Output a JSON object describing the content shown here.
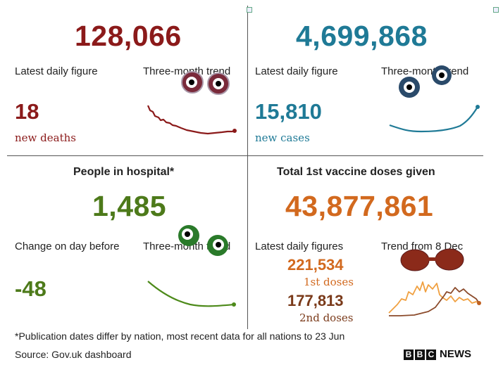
{
  "deaths": {
    "total": "128,066",
    "latest_label": "Latest daily figure",
    "trend_label": "Three-month trend",
    "daily": "18",
    "daily_sub": "new deaths",
    "color": "#8b1a1a"
  },
  "cases": {
    "total": "4,699,868",
    "latest_label": "Latest daily figure",
    "trend_label": "Three-month trend",
    "daily": "15,810",
    "daily_sub": "new cases",
    "color": "#1f7a96"
  },
  "hospital": {
    "heading": "People in hospital*",
    "total": "1,485",
    "change_label": "Change on day before",
    "trend_label": "Three-month trend",
    "change": "-48",
    "color": "#4d7a1a"
  },
  "vaccine": {
    "heading": "Total 1st vaccine doses given",
    "total": "43,877,861",
    "latest_label": "Latest daily figures",
    "trend_label": "Trend from 8 Dec",
    "first_value": "221,534",
    "first_label": "1st doses",
    "second_value": "177,813",
    "second_label": "2nd doses",
    "color_first": "#d2691e",
    "color_second": "#7a3a1a"
  },
  "footer": {
    "note": "*Publication dates differ by nation, most recent data for all nations to 23 Jun",
    "source": "Source: Gov.uk dashboard",
    "brand_letters": [
      "B",
      "B",
      "C"
    ],
    "brand_news": "NEWS"
  }
}
